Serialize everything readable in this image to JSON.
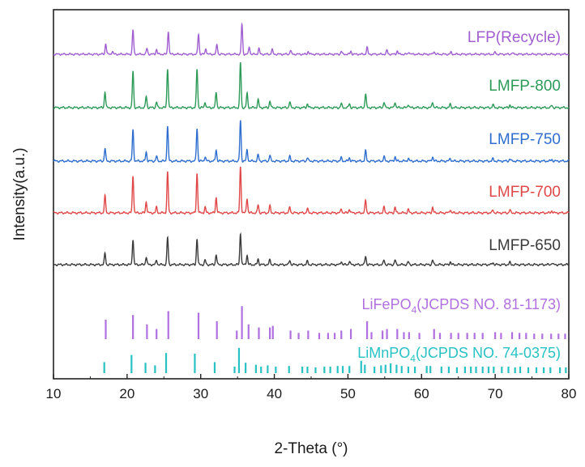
{
  "chart_data": {
    "type": "line",
    "title": "",
    "xlabel": "2-Theta (°)",
    "ylabel": "Intensity(a.u.)",
    "xlim": [
      10,
      80
    ],
    "xticks": [
      10,
      20,
      30,
      40,
      50,
      60,
      70,
      80
    ],
    "grid": false,
    "yticks_shown": false,
    "series": [
      {
        "name": "LFP(Recycle)",
        "color": "#a05ed0",
        "peaks": [
          [
            17.1,
            0.22
          ],
          [
            18.0,
            0.06
          ],
          [
            20.8,
            0.5
          ],
          [
            22.7,
            0.12
          ],
          [
            24.0,
            0.1
          ],
          [
            25.6,
            0.48
          ],
          [
            29.7,
            0.42
          ],
          [
            30.7,
            0.12
          ],
          [
            32.2,
            0.2
          ],
          [
            35.6,
            0.62
          ],
          [
            36.6,
            0.15
          ],
          [
            37.9,
            0.12
          ],
          [
            39.7,
            0.1
          ],
          [
            42.2,
            0.08
          ],
          [
            44.6,
            0.06
          ],
          [
            49.1,
            0.06
          ],
          [
            50.4,
            0.06
          ],
          [
            52.6,
            0.14
          ],
          [
            55.3,
            0.08
          ],
          [
            56.7,
            0.07
          ],
          [
            58.3,
            0.05
          ],
          [
            61.7,
            0.06
          ],
          [
            64.0,
            0.04
          ],
          [
            70.0,
            0.04
          ],
          [
            72.3,
            0.03
          ]
        ]
      },
      {
        "name": "LMFP-800",
        "color": "#2e9a58",
        "peaks": [
          [
            17.0,
            0.28
          ],
          [
            20.8,
            0.64
          ],
          [
            22.6,
            0.2
          ],
          [
            24.0,
            0.1
          ],
          [
            25.5,
            0.7
          ],
          [
            29.5,
            0.68
          ],
          [
            30.6,
            0.1
          ],
          [
            32.1,
            0.27
          ],
          [
            35.4,
            0.8
          ],
          [
            36.3,
            0.25
          ],
          [
            37.8,
            0.14
          ],
          [
            39.4,
            0.12
          ],
          [
            42.1,
            0.1
          ],
          [
            44.5,
            0.07
          ],
          [
            49.1,
            0.07
          ],
          [
            50.2,
            0.07
          ],
          [
            52.4,
            0.24
          ],
          [
            54.9,
            0.1
          ],
          [
            56.4,
            0.1
          ],
          [
            58.2,
            0.06
          ],
          [
            61.5,
            0.1
          ],
          [
            63.9,
            0.06
          ],
          [
            69.7,
            0.05
          ],
          [
            72.0,
            0.05
          ],
          [
            77.7,
            0.04
          ]
        ]
      },
      {
        "name": "LMFP-750",
        "color": "#2f6ecf",
        "peaks": [
          [
            17.0,
            0.22
          ],
          [
            20.8,
            0.55
          ],
          [
            22.6,
            0.16
          ],
          [
            24.0,
            0.08
          ],
          [
            25.5,
            0.62
          ],
          [
            29.5,
            0.58
          ],
          [
            30.6,
            0.08
          ],
          [
            32.1,
            0.2
          ],
          [
            35.4,
            0.72
          ],
          [
            36.3,
            0.2
          ],
          [
            37.8,
            0.11
          ],
          [
            39.4,
            0.1
          ],
          [
            42.1,
            0.08
          ],
          [
            44.5,
            0.06
          ],
          [
            49.1,
            0.06
          ],
          [
            50.2,
            0.06
          ],
          [
            52.4,
            0.18
          ],
          [
            54.9,
            0.08
          ],
          [
            56.4,
            0.08
          ],
          [
            58.2,
            0.05
          ],
          [
            61.5,
            0.08
          ],
          [
            63.9,
            0.05
          ],
          [
            69.7,
            0.04
          ],
          [
            72.0,
            0.04
          ],
          [
            77.7,
            0.03
          ]
        ]
      },
      {
        "name": "LMFP-700",
        "color": "#e04848",
        "peaks": [
          [
            17.0,
            0.3
          ],
          [
            20.8,
            0.66
          ],
          [
            22.6,
            0.2
          ],
          [
            24.0,
            0.1
          ],
          [
            25.5,
            0.72
          ],
          [
            29.5,
            0.7
          ],
          [
            30.6,
            0.1
          ],
          [
            32.1,
            0.27
          ],
          [
            35.4,
            0.82
          ],
          [
            36.3,
            0.26
          ],
          [
            37.8,
            0.14
          ],
          [
            39.4,
            0.12
          ],
          [
            42.1,
            0.1
          ],
          [
            44.5,
            0.07
          ],
          [
            49.1,
            0.07
          ],
          [
            50.2,
            0.07
          ],
          [
            52.4,
            0.22
          ],
          [
            54.9,
            0.1
          ],
          [
            56.4,
            0.1
          ],
          [
            58.2,
            0.06
          ],
          [
            61.5,
            0.1
          ],
          [
            63.9,
            0.06
          ],
          [
            69.7,
            0.05
          ],
          [
            72.0,
            0.05
          ],
          [
            77.7,
            0.04
          ]
        ]
      },
      {
        "name": "LMFP-650",
        "color": "#3a3a3a",
        "peaks": [
          [
            17.0,
            0.2
          ],
          [
            20.8,
            0.45
          ],
          [
            22.6,
            0.14
          ],
          [
            24.0,
            0.08
          ],
          [
            25.5,
            0.48
          ],
          [
            29.5,
            0.46
          ],
          [
            30.6,
            0.08
          ],
          [
            32.1,
            0.18
          ],
          [
            35.4,
            0.56
          ],
          [
            36.3,
            0.17
          ],
          [
            37.8,
            0.1
          ],
          [
            39.4,
            0.09
          ],
          [
            42.1,
            0.08
          ],
          [
            44.5,
            0.06
          ],
          [
            49.1,
            0.06
          ],
          [
            50.2,
            0.06
          ],
          [
            52.4,
            0.15
          ],
          [
            54.9,
            0.08
          ],
          [
            56.4,
            0.08
          ],
          [
            58.2,
            0.05
          ],
          [
            61.5,
            0.08
          ],
          [
            63.9,
            0.05
          ],
          [
            69.7,
            0.04
          ],
          [
            72.0,
            0.04
          ],
          [
            77.7,
            0.03
          ]
        ]
      }
    ],
    "references": [
      {
        "label_main": "LiFePO",
        "label_sub": "4",
        "label_rest": "(JCPDS NO. 81-1173)",
        "color": "#b070df",
        "lines": [
          [
            17.1,
            0.5
          ],
          [
            20.8,
            0.62
          ],
          [
            22.7,
            0.38
          ],
          [
            24.0,
            0.26
          ],
          [
            25.6,
            0.72
          ],
          [
            29.7,
            0.68
          ],
          [
            32.2,
            0.46
          ],
          [
            34.9,
            0.22
          ],
          [
            35.6,
            0.85
          ],
          [
            36.5,
            0.38
          ],
          [
            37.9,
            0.3
          ],
          [
            39.4,
            0.3
          ],
          [
            39.8,
            0.34
          ],
          [
            42.2,
            0.22
          ],
          [
            43.3,
            0.16
          ],
          [
            44.6,
            0.22
          ],
          [
            46.1,
            0.16
          ],
          [
            47.3,
            0.16
          ],
          [
            48.2,
            0.16
          ],
          [
            49.1,
            0.22
          ],
          [
            50.4,
            0.26
          ],
          [
            52.6,
            0.46
          ],
          [
            53.2,
            0.18
          ],
          [
            54.7,
            0.22
          ],
          [
            55.3,
            0.26
          ],
          [
            56.7,
            0.26
          ],
          [
            57.6,
            0.18
          ],
          [
            58.3,
            0.18
          ],
          [
            59.7,
            0.16
          ],
          [
            61.7,
            0.26
          ],
          [
            62.5,
            0.16
          ],
          [
            64.0,
            0.16
          ],
          [
            65.0,
            0.16
          ],
          [
            66.2,
            0.16
          ],
          [
            67.2,
            0.16
          ],
          [
            68.3,
            0.16
          ],
          [
            70.0,
            0.18
          ],
          [
            70.8,
            0.16
          ],
          [
            72.3,
            0.18
          ],
          [
            73.3,
            0.16
          ],
          [
            74.2,
            0.16
          ],
          [
            75.3,
            0.14
          ],
          [
            76.4,
            0.14
          ],
          [
            77.6,
            0.14
          ],
          [
            78.6,
            0.14
          ],
          [
            79.5,
            0.14
          ]
        ]
      },
      {
        "label_main": "LiMnPO",
        "label_sub": "4",
        "label_rest": "(JCPDS NO. 74-0375)",
        "color": "#28c2c4",
        "lines": [
          [
            16.9,
            0.34
          ],
          [
            20.6,
            0.56
          ],
          [
            22.5,
            0.32
          ],
          [
            23.8,
            0.24
          ],
          [
            25.3,
            0.62
          ],
          [
            29.2,
            0.6
          ],
          [
            31.9,
            0.34
          ],
          [
            34.6,
            0.2
          ],
          [
            35.2,
            0.78
          ],
          [
            36.1,
            0.32
          ],
          [
            37.5,
            0.26
          ],
          [
            38.2,
            0.2
          ],
          [
            39.1,
            0.24
          ],
          [
            40.2,
            0.2
          ],
          [
            42.0,
            0.22
          ],
          [
            43.8,
            0.2
          ],
          [
            44.5,
            0.2
          ],
          [
            45.6,
            0.18
          ],
          [
            46.8,
            0.2
          ],
          [
            47.6,
            0.2
          ],
          [
            48.6,
            0.22
          ],
          [
            49.3,
            0.22
          ],
          [
            50.2,
            0.22
          ],
          [
            51.8,
            0.38
          ],
          [
            52.3,
            0.26
          ],
          [
            53.6,
            0.2
          ],
          [
            54.5,
            0.24
          ],
          [
            55.1,
            0.26
          ],
          [
            55.8,
            0.3
          ],
          [
            56.6,
            0.26
          ],
          [
            57.3,
            0.22
          ],
          [
            58.2,
            0.2
          ],
          [
            59.1,
            0.2
          ],
          [
            60.7,
            0.22
          ],
          [
            61.2,
            0.22
          ],
          [
            62.7,
            0.2
          ],
          [
            63.7,
            0.2
          ],
          [
            64.8,
            0.18
          ],
          [
            65.9,
            0.2
          ],
          [
            66.7,
            0.2
          ],
          [
            67.4,
            0.2
          ],
          [
            68.3,
            0.2
          ],
          [
            69.1,
            0.2
          ],
          [
            69.8,
            0.2
          ],
          [
            70.9,
            0.2
          ],
          [
            71.8,
            0.2
          ],
          [
            72.7,
            0.18
          ],
          [
            73.4,
            0.2
          ],
          [
            74.5,
            0.18
          ],
          [
            75.6,
            0.18
          ],
          [
            76.6,
            0.18
          ],
          [
            77.5,
            0.18
          ],
          [
            78.8,
            0.18
          ],
          [
            79.6,
            0.18
          ]
        ]
      }
    ]
  }
}
